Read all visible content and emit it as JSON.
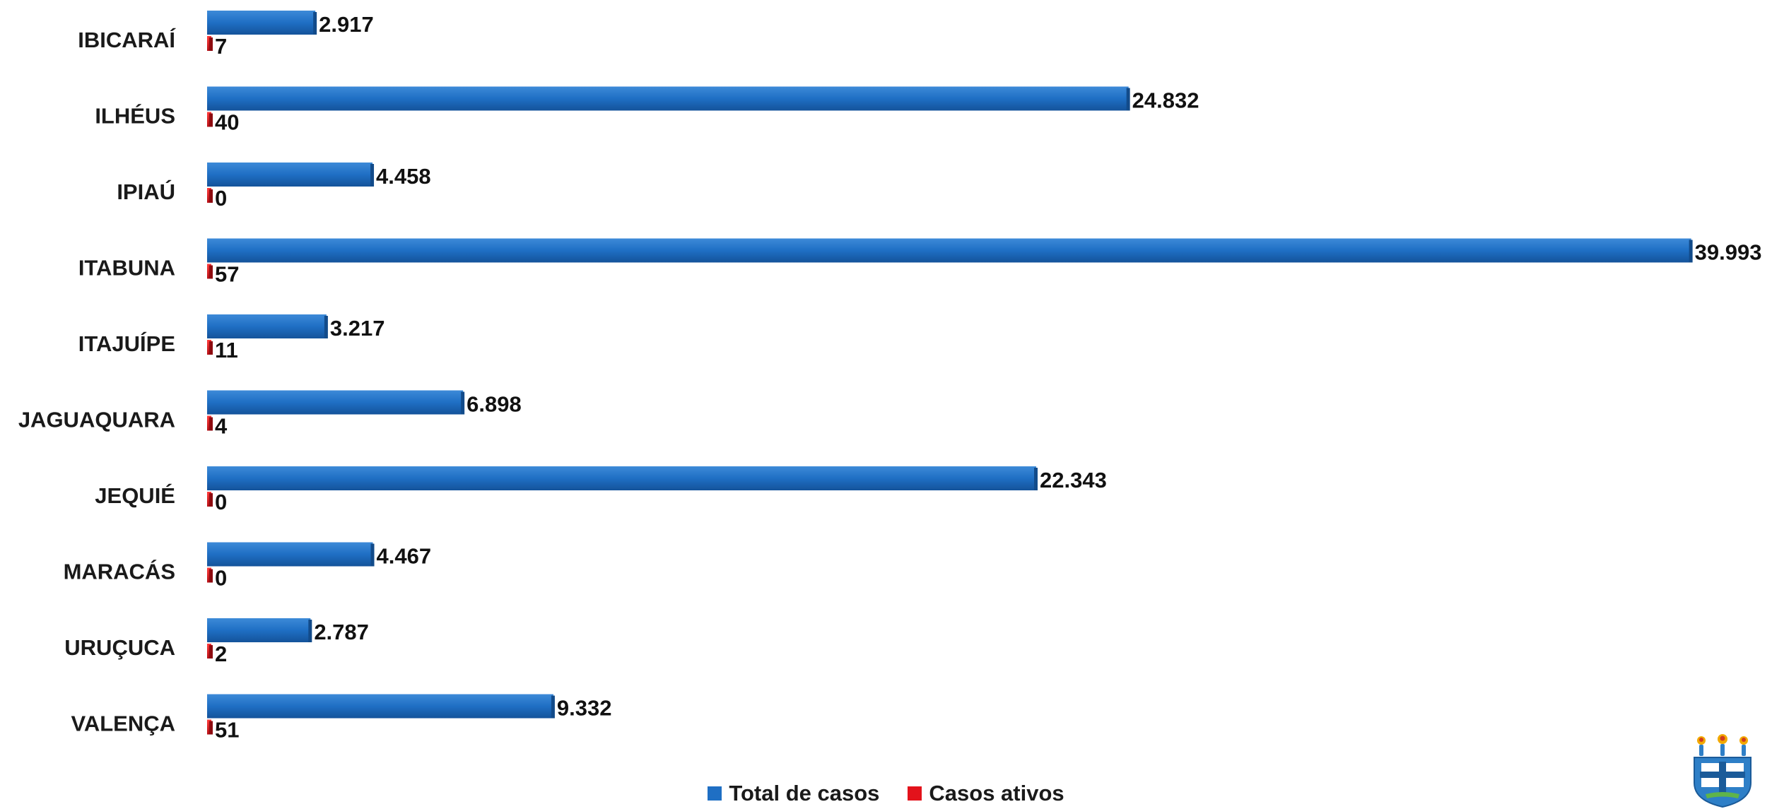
{
  "chart_data": {
    "type": "bar",
    "orientation": "horizontal",
    "categories": [
      "IBICARAÍ",
      "ILHÉUS",
      "IPIAÚ",
      "ITABUNA",
      "ITAJUÍPE",
      "JAGUAQUARA",
      "JEQUIÉ",
      "MARACÁS",
      "URUÇUCA",
      "VALENÇA"
    ],
    "series": [
      {
        "name": "Total de casos",
        "color": "#1f6fc4",
        "values": [
          2917,
          24832,
          4458,
          39993,
          3217,
          6898,
          22343,
          4467,
          2787,
          9332
        ],
        "labels": [
          "2.917",
          "24.832",
          "4.458",
          "39.993",
          "3.217",
          "6.898",
          "22.343",
          "4.467",
          "2.787",
          "9.332"
        ]
      },
      {
        "name": "Casos ativos",
        "color": "#e3121b",
        "values": [
          7,
          40,
          0,
          57,
          11,
          4,
          0,
          0,
          2,
          51
        ],
        "labels": [
          "7",
          "40",
          "0",
          "57",
          "11",
          "4",
          "0",
          "0",
          "2",
          "51"
        ]
      }
    ],
    "xlim": [
      0,
      40000
    ],
    "grid": false,
    "legend_position": "bottom",
    "data_labels": true
  },
  "legend": {
    "total_label": "Total de casos",
    "ativos_label": "Casos ativos"
  },
  "emblem": {
    "icon": "university-crest-icon"
  }
}
